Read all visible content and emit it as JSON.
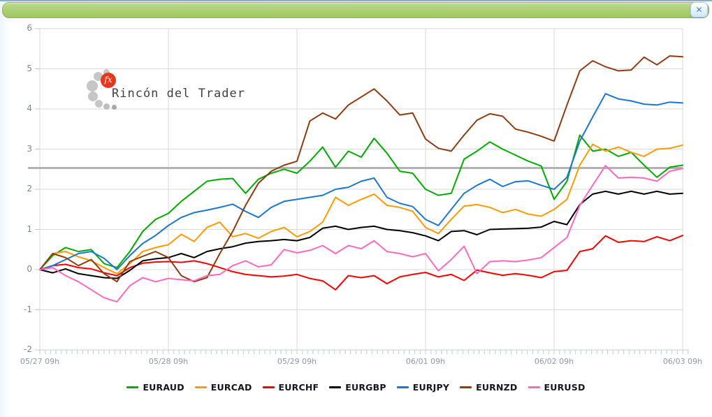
{
  "window": {
    "close_icon": "✕"
  },
  "watermark": {
    "logo_text": "fx",
    "title": "Rincón del Trader"
  },
  "chart_data": {
    "type": "line",
    "x_tick_labels": [
      "05/27 09h",
      "05/28 09h",
      "05/29 09h",
      "06/01 09h",
      "06/02 09h",
      "06/03 09h"
    ],
    "y_ticks": [
      6,
      5,
      4,
      3,
      2,
      1,
      0,
      -1,
      -2
    ],
    "ylim": [
      -2,
      6
    ],
    "xlim_days": [
      0,
      5
    ],
    "grid": true,
    "marker_line_value": 2.53,
    "marker_line_color": "#b2b2b2",
    "grid_color": "#d9d9d9",
    "axis_tick_color": "#b9cedb",
    "legend_position": "bottom",
    "x_step": 0.1,
    "line_width": 2,
    "series": [
      {
        "name": "EURAUD",
        "color": "#00ac00",
        "values": [
          0,
          0.35,
          0.55,
          0.45,
          0.5,
          0.15,
          0.05,
          0.45,
          0.95,
          1.25,
          1.4,
          1.7,
          1.95,
          2.2,
          2.25,
          2.27,
          1.9,
          2.25,
          2.4,
          2.5,
          2.4,
          2.7,
          3.05,
          2.55,
          2.95,
          2.8,
          3.27,
          2.9,
          2.45,
          2.4,
          2.0,
          1.85,
          1.9,
          2.75,
          2.95,
          3.18,
          3.0,
          2.85,
          2.7,
          2.58,
          1.75,
          2.2,
          3.35,
          2.95,
          3.0,
          2.82,
          2.92,
          2.6,
          2.3,
          2.55,
          2.6
        ]
      },
      {
        "name": "EURCAD",
        "color": "#ff9a00",
        "values": [
          0,
          0.4,
          0.45,
          0.32,
          0.22,
          0.05,
          -0.1,
          0.15,
          0.45,
          0.55,
          0.62,
          0.88,
          0.7,
          1.05,
          1.18,
          0.82,
          0.9,
          0.78,
          0.95,
          1.05,
          0.82,
          0.95,
          1.18,
          1.8,
          1.6,
          1.75,
          1.88,
          1.6,
          1.55,
          1.45,
          1.05,
          0.9,
          1.25,
          1.58,
          1.62,
          1.55,
          1.42,
          1.5,
          1.38,
          1.33,
          1.5,
          1.75,
          2.6,
          3.12,
          2.95,
          3.05,
          2.92,
          2.82,
          3.0,
          3.02,
          3.1
        ]
      },
      {
        "name": "EURCHF",
        "color": "#f60000",
        "values": [
          0,
          0.1,
          0.13,
          0.05,
          0.02,
          -0.08,
          -0.15,
          0.05,
          0.16,
          0.19,
          0.2,
          0.18,
          0.22,
          0.15,
          0.05,
          -0.05,
          -0.12,
          -0.15,
          -0.18,
          -0.16,
          -0.12,
          -0.22,
          -0.28,
          -0.5,
          -0.15,
          -0.2,
          -0.15,
          -0.35,
          -0.18,
          -0.12,
          -0.07,
          -0.18,
          -0.12,
          -0.27,
          -0.01,
          -0.08,
          -0.14,
          -0.1,
          -0.14,
          -0.2,
          -0.05,
          -0.02,
          0.45,
          0.52,
          0.84,
          0.68,
          0.72,
          0.7,
          0.82,
          0.72,
          0.85
        ]
      },
      {
        "name": "EURGBP",
        "color": "#000000",
        "values": [
          0,
          -0.08,
          0.02,
          -0.1,
          -0.15,
          -0.2,
          -0.22,
          -0.02,
          0.22,
          0.27,
          0.3,
          0.4,
          0.3,
          0.45,
          0.52,
          0.57,
          0.66,
          0.7,
          0.72,
          0.75,
          0.72,
          0.8,
          1.03,
          1.08,
          1.0,
          1.05,
          1.08,
          1.0,
          0.97,
          0.92,
          0.84,
          0.72,
          0.95,
          0.97,
          0.87,
          1.0,
          1.01,
          1.02,
          1.03,
          1.06,
          1.2,
          1.12,
          1.62,
          1.88,
          1.95,
          1.88,
          1.95,
          1.88,
          1.95,
          1.88,
          1.9
        ]
      },
      {
        "name": "EURJPY",
        "color": "#1b76d2",
        "values": [
          0,
          0.1,
          0.25,
          0.4,
          0.45,
          0.28,
          0.0,
          0.35,
          0.65,
          0.85,
          1.1,
          1.3,
          1.42,
          1.48,
          1.55,
          1.63,
          1.45,
          1.3,
          1.55,
          1.7,
          1.75,
          1.8,
          1.85,
          2.0,
          2.05,
          2.2,
          2.28,
          1.8,
          1.65,
          1.57,
          1.25,
          1.1,
          1.5,
          1.9,
          2.1,
          2.25,
          2.07,
          2.19,
          2.21,
          2.1,
          2.0,
          2.3,
          3.2,
          3.8,
          4.38,
          4.25,
          4.2,
          4.12,
          4.1,
          4.17,
          4.15
        ]
      },
      {
        "name": "EURNZD",
        "color": "#8d3c0f",
        "values": [
          0,
          0.4,
          0.3,
          0.1,
          0.25,
          -0.1,
          -0.3,
          0.2,
          0.33,
          0.45,
          0.3,
          -0.15,
          -0.3,
          -0.2,
          0.4,
          0.95,
          1.6,
          2.15,
          2.45,
          2.6,
          2.7,
          3.7,
          3.9,
          3.75,
          4.1,
          4.3,
          4.5,
          4.2,
          3.85,
          3.9,
          3.25,
          3.02,
          2.95,
          3.35,
          3.72,
          3.88,
          3.82,
          3.5,
          3.42,
          3.32,
          3.2,
          4.1,
          4.95,
          5.2,
          5.05,
          4.95,
          4.97,
          5.29,
          5.1,
          5.32,
          5.3
        ]
      },
      {
        "name": "EURUSD",
        "color": "#ff68bf",
        "values": [
          0,
          0.05,
          -0.15,
          -0.3,
          -0.5,
          -0.7,
          -0.8,
          -0.4,
          -0.2,
          -0.3,
          -0.22,
          -0.25,
          -0.28,
          -0.15,
          -0.12,
          0.1,
          0.22,
          0.07,
          0.12,
          0.5,
          0.42,
          0.48,
          0.6,
          0.4,
          0.6,
          0.52,
          0.72,
          0.45,
          0.4,
          0.32,
          0.4,
          -0.03,
          0.25,
          0.58,
          -0.1,
          0.2,
          0.22,
          0.2,
          0.24,
          0.3,
          0.55,
          0.8,
          1.6,
          2.1,
          2.59,
          2.28,
          2.3,
          2.28,
          2.2,
          2.45,
          2.52
        ]
      }
    ]
  }
}
